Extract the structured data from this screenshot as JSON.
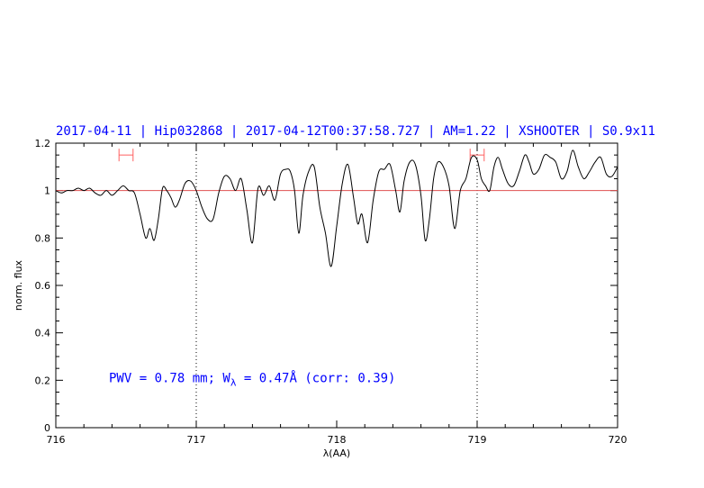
{
  "chart_data": {
    "type": "line",
    "title": "2017-04-11 | Hip032868 | 2017-04-12T00:37:58.727 | AM=1.22 | XSHOOTER | S0.9x11",
    "xlabel": "λ(AA)",
    "ylabel": "norm. flux",
    "xlim": [
      716,
      720
    ],
    "ylim": [
      0,
      1.2
    ],
    "x_ticks": [
      716,
      717,
      718,
      719,
      720
    ],
    "y_ticks": [
      0,
      0.2,
      0.4,
      0.6,
      0.8,
      1,
      1.2
    ],
    "x_tick_labels": [
      "716",
      "717",
      "718",
      "719",
      "720"
    ],
    "y_tick_labels": [
      "0",
      "0.2",
      "0.4",
      "0.6",
      "0.8",
      "1",
      "1.2"
    ],
    "reference_line": 1.0,
    "vertical_markers": [
      717.0,
      719.0
    ],
    "intervals": [
      [
        716.45,
        716.55
      ],
      [
        718.95,
        719.05
      ]
    ],
    "annotation": {
      "x": 716.5,
      "y": 0.2
    },
    "annotation_parts": [
      "PWV = 0.78 mm; W",
      "λ",
      " = 0.47Å (corr: 0.39)"
    ],
    "colors": {
      "title": "#0000ff",
      "annotation": "#0000ff",
      "reference": "#e05050",
      "interval": "#ff6060",
      "spectrum": "#000000"
    },
    "series": [
      {
        "x": [
          716.0,
          716.04,
          716.08,
          716.12,
          716.16,
          716.2,
          716.24,
          716.28,
          716.32,
          716.36,
          716.4,
          716.44,
          716.48,
          716.52,
          716.56,
          716.6,
          716.64,
          716.67,
          716.7,
          716.73,
          716.76,
          716.79,
          716.82,
          716.85,
          716.88,
          716.92,
          716.96,
          717.0,
          717.04,
          717.08,
          717.12,
          717.16,
          717.2,
          717.24,
          717.28,
          717.32,
          717.36,
          717.4,
          717.44,
          717.48,
          717.52,
          717.56,
          717.6,
          717.64,
          717.67,
          717.7,
          717.73,
          717.76,
          717.8,
          717.84,
          717.88,
          717.92,
          717.96,
          718.0,
          718.04,
          718.08,
          718.12,
          718.15,
          718.18,
          718.22,
          718.26,
          718.3,
          718.34,
          718.38,
          718.42,
          718.45,
          718.48,
          718.52,
          718.56,
          718.6,
          718.63,
          718.66,
          718.69,
          718.72,
          718.76,
          718.8,
          718.84,
          718.88,
          718.92,
          718.96,
          719.0,
          719.03,
          719.06,
          719.09,
          719.12,
          719.15,
          719.18,
          719.22,
          719.26,
          719.3,
          719.34,
          719.37,
          719.4,
          719.44,
          719.48,
          719.52,
          719.56,
          719.6,
          719.64,
          719.68,
          719.72,
          719.76,
          719.8,
          719.84,
          719.88,
          719.92,
          719.96,
          720.0
        ],
        "values": [
          1.0,
          0.99,
          1.0,
          1.0,
          1.01,
          1.0,
          1.01,
          0.99,
          0.98,
          1.0,
          0.98,
          1.0,
          1.02,
          1.0,
          0.99,
          0.9,
          0.8,
          0.84,
          0.79,
          0.88,
          1.01,
          1.0,
          0.97,
          0.93,
          0.96,
          1.03,
          1.04,
          1.0,
          0.93,
          0.88,
          0.88,
          0.99,
          1.06,
          1.05,
          1.0,
          1.05,
          0.92,
          0.78,
          1.01,
          0.98,
          1.02,
          0.96,
          1.07,
          1.09,
          1.08,
          1.0,
          0.82,
          0.98,
          1.08,
          1.1,
          0.93,
          0.82,
          0.68,
          0.85,
          1.03,
          1.11,
          0.97,
          0.86,
          0.9,
          0.78,
          0.96,
          1.08,
          1.09,
          1.11,
          1.0,
          0.91,
          1.04,
          1.12,
          1.11,
          0.98,
          0.79,
          0.88,
          1.05,
          1.12,
          1.1,
          1.02,
          0.84,
          1.0,
          1.05,
          1.14,
          1.13,
          1.05,
          1.02,
          1.0,
          1.1,
          1.14,
          1.09,
          1.03,
          1.02,
          1.08,
          1.15,
          1.12,
          1.07,
          1.09,
          1.15,
          1.14,
          1.12,
          1.05,
          1.08,
          1.17,
          1.1,
          1.05,
          1.08,
          1.12,
          1.14,
          1.07,
          1.06,
          1.1
        ]
      }
    ]
  }
}
